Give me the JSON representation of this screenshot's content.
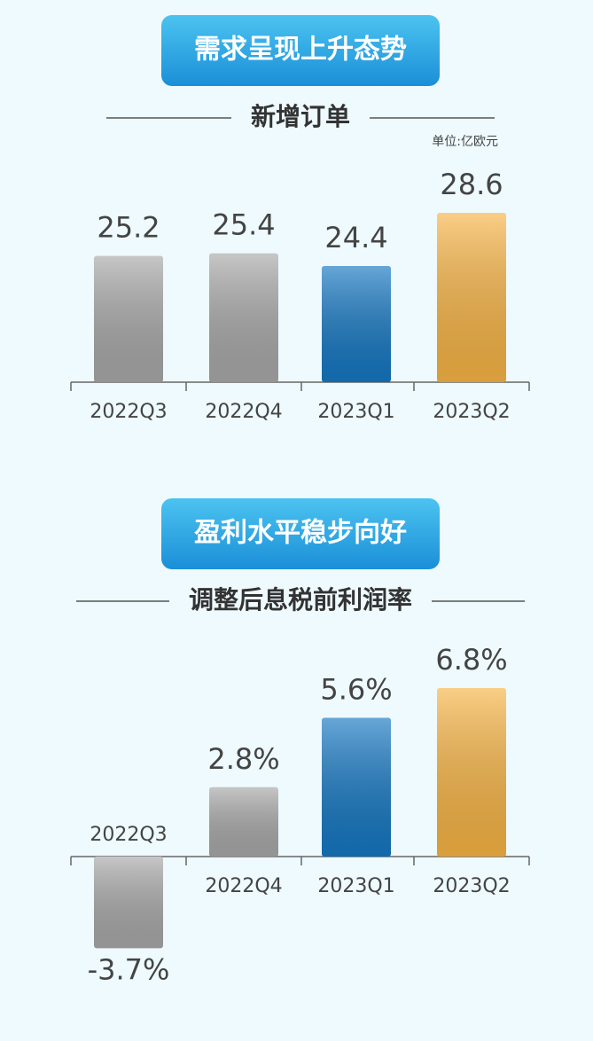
{
  "chart_data": [
    {
      "type": "bar",
      "banner": "需求呈现上升态势",
      "title": "新增订单",
      "unit": "单位:亿欧元",
      "categories": [
        "2022Q3",
        "2022Q4",
        "2023Q1",
        "2023Q2"
      ],
      "values": [
        25.2,
        25.4,
        24.4,
        28.6
      ],
      "colors": [
        "#a8a8a8",
        "#a8a8a8",
        "#1577c2",
        "#f7b445"
      ]
    },
    {
      "type": "bar",
      "banner": "盈利水平稳步向好",
      "title": "调整后息税前利润率",
      "categories": [
        "2022Q3",
        "2022Q4",
        "2023Q1",
        "2023Q2"
      ],
      "values": [
        -3.7,
        2.8,
        5.6,
        6.8
      ],
      "value_labels": [
        "-3.7%",
        "2.8%",
        "5.6%",
        "6.8%"
      ],
      "colors": [
        "#a8a8a8",
        "#a8a8a8",
        "#1577c2",
        "#f7b445"
      ]
    }
  ]
}
